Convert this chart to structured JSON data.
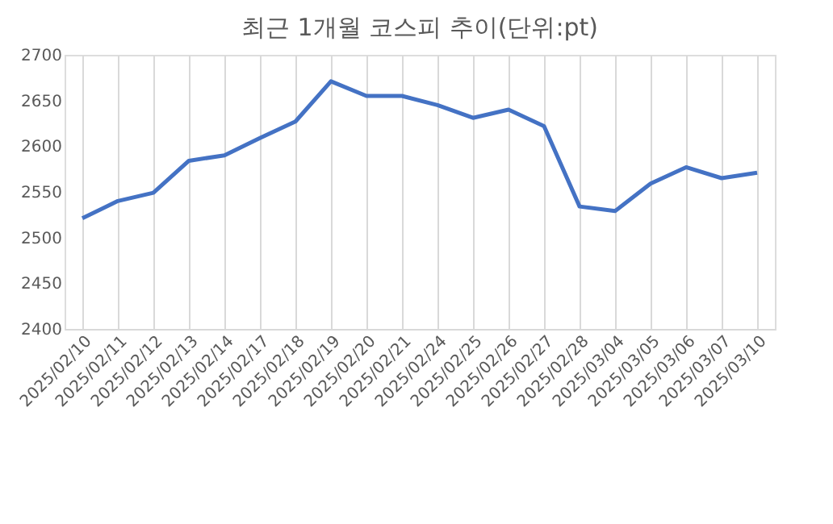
{
  "chart_data": {
    "type": "line",
    "title": "최근 1개월 코스피 추이(단위:pt)",
    "categories": [
      "2025/02/10",
      "2025/02/11",
      "2025/02/12",
      "2025/02/13",
      "2025/02/14",
      "2025/02/17",
      "2025/02/18",
      "2025/02/19",
      "2025/02/20",
      "2025/02/21",
      "2025/02/24",
      "2025/02/25",
      "2025/02/26",
      "2025/02/27",
      "2025/02/28",
      "2025/03/04",
      "2025/03/05",
      "2025/03/06",
      "2025/03/07",
      "2025/03/10"
    ],
    "series": [
      {
        "color": "#4472c4",
        "values": [
          2521,
          2540,
          2549,
          2584,
          2590,
          2609,
          2627,
          2671,
          2655,
          2655,
          2645,
          2631,
          2640,
          2622,
          2534,
          2529,
          2559,
          2577,
          2565,
          2571
        ]
      }
    ],
    "ylim": [
      2400,
      2700
    ],
    "yticks": [
      2400,
      2450,
      2500,
      2550,
      2600,
      2650,
      2700
    ],
    "grid": "x",
    "marker": "none",
    "line_style": "solid"
  }
}
